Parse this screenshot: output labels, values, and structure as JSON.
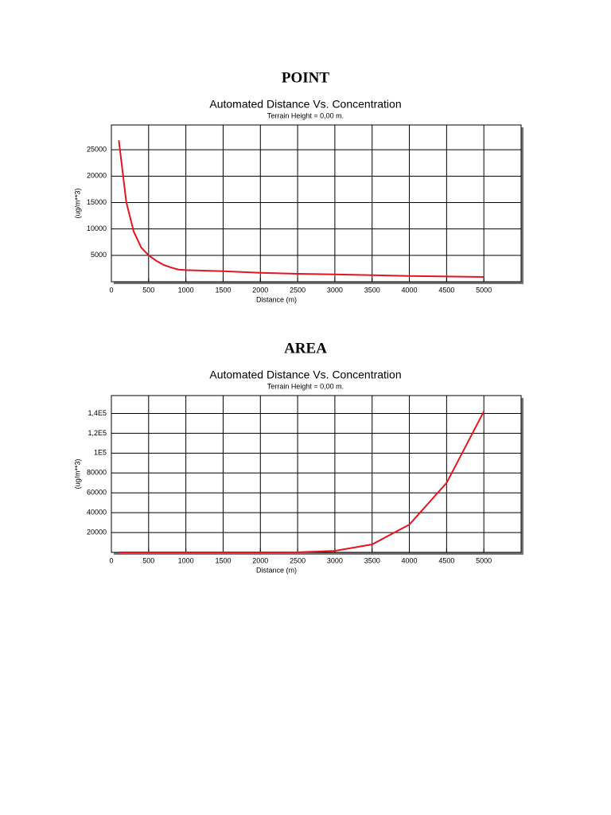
{
  "chart_data": [
    {
      "type": "line",
      "heading": "POINT",
      "title": "Automated Distance Vs. Concentration",
      "subtitle": "Terrain Height = 0,00 m.",
      "xlabel": "Distance (m)",
      "ylabel": "(ug/m**3)",
      "color": "#e8141c",
      "grid": true,
      "x": [
        100,
        200,
        300,
        400,
        500,
        600,
        700,
        800,
        900,
        1000,
        1500,
        2000,
        2500,
        3000,
        3500,
        4000,
        4500,
        5000
      ],
      "values": [
        26800,
        15100,
        9500,
        6500,
        5000,
        4000,
        3200,
        2700,
        2300,
        2200,
        2000,
        1700,
        1500,
        1400,
        1250,
        1100,
        1000,
        900
      ],
      "xlim": [
        0,
        5500
      ],
      "xticks": [
        0,
        500,
        1000,
        1500,
        2000,
        2500,
        3000,
        3500,
        4000,
        4500,
        5000
      ],
      "ylim": [
        0,
        29700
      ],
      "yticks": [
        5000,
        10000,
        15000,
        20000,
        25000
      ]
    },
    {
      "type": "line",
      "heading": "AREA",
      "title": "Automated Distance Vs. Concentration",
      "subtitle": "Terrain Height = 0,00 m.",
      "xlabel": "Distance (m)",
      "ylabel": "(ug/m**3)",
      "color": "#e8141c",
      "grid": true,
      "x": [
        100,
        500,
        1000,
        1500,
        2000,
        2500,
        3000,
        3500,
        4000,
        4500,
        5000
      ],
      "values": [
        0,
        0,
        0,
        0,
        0,
        100,
        1500,
        8000,
        28000,
        70000,
        142000
      ],
      "xlim": [
        0,
        5500
      ],
      "xticks": [
        0,
        500,
        1000,
        1500,
        2000,
        2500,
        3000,
        3500,
        4000,
        4500,
        5000
      ],
      "ylim": [
        0,
        158000
      ],
      "yticks": [
        20000,
        40000,
        60000,
        80000,
        {
          "value": 100000,
          "label": "1E5"
        },
        {
          "value": 120000,
          "label": "1,2E5"
        },
        {
          "value": 140000,
          "label": "1,4E5"
        }
      ]
    }
  ]
}
